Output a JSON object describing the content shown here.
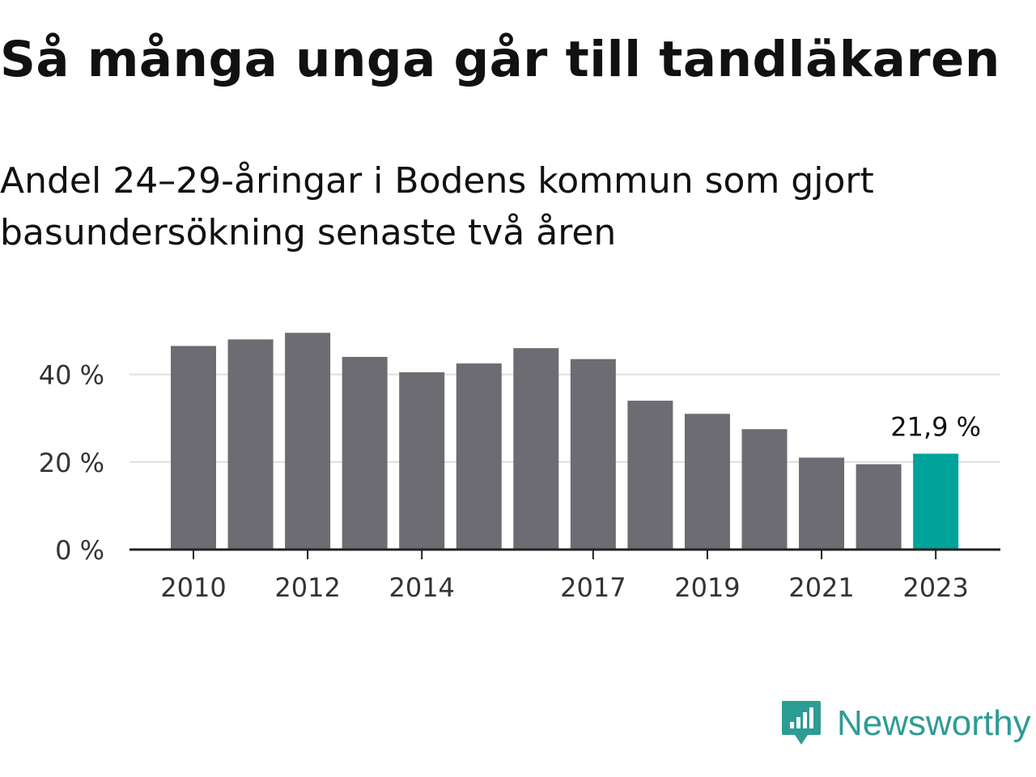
{
  "title": "Så många unga går till tandläkaren",
  "subtitle": "Andel 24–29-åringar i Bodens kommun som gjort basundersökning senaste två åren",
  "brand": {
    "name": "Newsworthy",
    "color": "#2d9c94",
    "icon": "newsworthy-logo-icon"
  },
  "chart_data": {
    "type": "bar",
    "categories": [
      "2010",
      "2011",
      "2012",
      "2013",
      "2014",
      "2015",
      "2016",
      "2017",
      "2018",
      "2019",
      "2020",
      "2021",
      "2022",
      "2023"
    ],
    "values": [
      46.5,
      48.0,
      49.5,
      44.0,
      40.5,
      42.5,
      46.0,
      43.5,
      34.0,
      31.0,
      27.5,
      21.0,
      19.5,
      21.9
    ],
    "x_tick_labels": [
      "2010",
      "",
      "2012",
      "",
      "2014",
      "",
      "",
      "2017",
      "",
      "2019",
      "",
      "2021",
      "",
      "2023"
    ],
    "y_ticks": [
      0,
      20,
      40
    ],
    "y_tick_labels": [
      "0 %",
      "20 %",
      "40 %"
    ],
    "ylim": [
      0,
      50
    ],
    "annotation": {
      "index": 13,
      "text": "21,9 %"
    },
    "xlabel": "",
    "ylabel": "",
    "grid": true,
    "colors": {
      "bar": "#6d6c73",
      "highlight": "#00a39a",
      "grid": "#dddddd",
      "axis": "#222222"
    }
  }
}
